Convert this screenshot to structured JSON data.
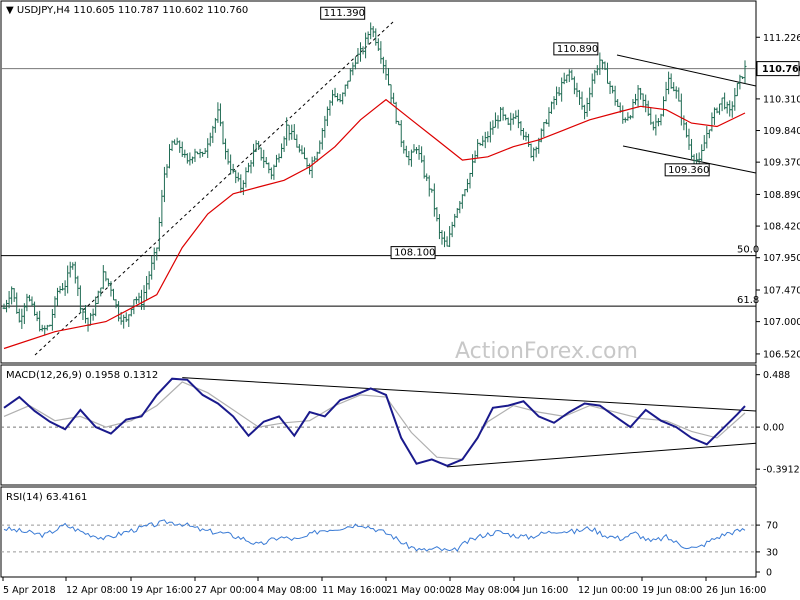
{
  "chart_data": [
    {
      "type": "candlestick",
      "title": "USDJPY,H4  110.605 110.787 110.602 110.760",
      "current_price_label": "110.760",
      "watermark": "ActionForex.com",
      "ylim": [
        106.4,
        111.75
      ],
      "y_ticks": [
        "111.226",
        "110.760",
        "110.310",
        "109.840",
        "109.370",
        "108.890",
        "108.420",
        "107.950",
        "107.470",
        "107.000",
        "106.520"
      ],
      "x_labels": [
        "5 Apr 2018",
        "12 Apr 08:00",
        "19 Apr 16:00",
        "27 Apr 00:00",
        "4 May 08:00",
        "11 May 16:00",
        "21 May 00:00",
        "28 May 08:00",
        "4 Jun 16:00",
        "12 Jun 00:00",
        "19 Jun 08:00",
        "26 Jun 16:00"
      ],
      "annotations": [
        {
          "text": "111.390",
          "value": 111.39
        },
        {
          "text": "110.890",
          "value": 110.89
        },
        {
          "text": "109.360",
          "value": 109.36
        },
        {
          "text": "108.100",
          "value": 108.1
        }
      ],
      "fib_levels": [
        {
          "label": "50.0",
          "value": 107.98
        },
        {
          "label": "61.8",
          "value": 107.23
        }
      ],
      "horizontal_line": 110.76,
      "close_path": [
        [
          0,
          107.2
        ],
        [
          3,
          107.5
        ],
        [
          6,
          107.0
        ],
        [
          9,
          107.4
        ],
        [
          12,
          107.1
        ],
        [
          15,
          106.85
        ],
        [
          18,
          106.95
        ],
        [
          21,
          107.45
        ],
        [
          24,
          107.55
        ],
        [
          27,
          107.9
        ],
        [
          30,
          107.25
        ],
        [
          33,
          106.95
        ],
        [
          36,
          107.25
        ],
        [
          39,
          107.7
        ],
        [
          42,
          107.5
        ],
        [
          45,
          107.1
        ],
        [
          48,
          107.0
        ],
        [
          51,
          107.35
        ],
        [
          54,
          107.3
        ],
        [
          57,
          107.7
        ],
        [
          60,
          108.1
        ],
        [
          63,
          109.2
        ],
        [
          66,
          109.65
        ],
        [
          69,
          109.6
        ],
        [
          72,
          109.35
        ],
        [
          75,
          109.55
        ],
        [
          78,
          109.45
        ],
        [
          81,
          109.8
        ],
        [
          84,
          110.1
        ],
        [
          87,
          109.5
        ],
        [
          90,
          109.2
        ],
        [
          93,
          109.0
        ],
        [
          96,
          109.3
        ],
        [
          99,
          109.6
        ],
        [
          102,
          109.4
        ],
        [
          105,
          109.2
        ],
        [
          108,
          109.5
        ],
        [
          111,
          109.9
        ],
        [
          114,
          109.7
        ],
        [
          117,
          109.45
        ],
        [
          120,
          109.3
        ],
        [
          123,
          109.55
        ],
        [
          126,
          110.0
        ],
        [
          129,
          110.4
        ],
        [
          132,
          110.25
        ],
        [
          135,
          110.6
        ],
        [
          138,
          110.9
        ],
        [
          141,
          111.05
        ],
        [
          144,
          111.39
        ],
        [
          147,
          111.1
        ],
        [
          150,
          110.7
        ],
        [
          153,
          110.2
        ],
        [
          156,
          109.7
        ],
        [
          159,
          109.4
        ],
        [
          162,
          109.6
        ],
        [
          165,
          109.2
        ],
        [
          168,
          108.9
        ],
        [
          171,
          108.3
        ],
        [
          174,
          108.1
        ],
        [
          177,
          108.6
        ],
        [
          180,
          108.9
        ],
        [
          183,
          109.2
        ],
        [
          186,
          109.6
        ],
        [
          189,
          109.7
        ],
        [
          192,
          109.9
        ],
        [
          195,
          110.1
        ],
        [
          198,
          109.9
        ],
        [
          201,
          110.1
        ],
        [
          204,
          109.8
        ],
        [
          207,
          109.5
        ],
        [
          210,
          109.7
        ],
        [
          213,
          110.0
        ],
        [
          216,
          110.3
        ],
        [
          219,
          110.5
        ],
        [
          222,
          110.7
        ],
        [
          225,
          110.4
        ],
        [
          228,
          110.1
        ],
        [
          231,
          110.6
        ],
        [
          234,
          110.89
        ],
        [
          237,
          110.6
        ],
        [
          240,
          110.3
        ],
        [
          243,
          110.0
        ],
        [
          246,
          110.1
        ],
        [
          249,
          110.4
        ],
        [
          252,
          110.2
        ],
        [
          255,
          109.9
        ],
        [
          258,
          110.1
        ],
        [
          261,
          110.6
        ],
        [
          264,
          110.4
        ],
        [
          267,
          109.9
        ],
        [
          270,
          109.5
        ],
        [
          273,
          109.36
        ],
        [
          276,
          109.8
        ],
        [
          279,
          110.1
        ],
        [
          282,
          110.3
        ],
        [
          285,
          110.1
        ],
        [
          288,
          110.5
        ],
        [
          291,
          110.76
        ]
      ],
      "ma_path": [
        [
          0,
          106.6
        ],
        [
          20,
          106.85
        ],
        [
          40,
          107.0
        ],
        [
          60,
          107.4
        ],
        [
          70,
          108.1
        ],
        [
          80,
          108.6
        ],
        [
          90,
          108.9
        ],
        [
          100,
          109.0
        ],
        [
          110,
          109.1
        ],
        [
          120,
          109.3
        ],
        [
          130,
          109.6
        ],
        [
          140,
          110.0
        ],
        [
          150,
          110.3
        ],
        [
          160,
          110.0
        ],
        [
          170,
          109.7
        ],
        [
          180,
          109.4
        ],
        [
          190,
          109.45
        ],
        [
          200,
          109.6
        ],
        [
          210,
          109.7
        ],
        [
          220,
          109.85
        ],
        [
          230,
          110.0
        ],
        [
          240,
          110.1
        ],
        [
          250,
          110.2
        ],
        [
          260,
          110.15
        ],
        [
          270,
          109.95
        ],
        [
          280,
          109.9
        ],
        [
          291,
          110.1
        ]
      ]
    },
    {
      "type": "line",
      "title": "MACD(12,26,9) 0.1958 0.1312",
      "ylim": [
        -0.52,
        0.55
      ],
      "y_ticks": [
        "0.488",
        "0.00",
        "-0.3912"
      ],
      "macd_path": [
        [
          0,
          0.18
        ],
        [
          6,
          0.28
        ],
        [
          12,
          0.15
        ],
        [
          18,
          0.05
        ],
        [
          24,
          -0.02
        ],
        [
          30,
          0.16
        ],
        [
          36,
          0.0
        ],
        [
          42,
          -0.06
        ],
        [
          48,
          0.07
        ],
        [
          54,
          0.1
        ],
        [
          60,
          0.3
        ],
        [
          66,
          0.45
        ],
        [
          72,
          0.44
        ],
        [
          78,
          0.3
        ],
        [
          84,
          0.22
        ],
        [
          90,
          0.1
        ],
        [
          96,
          -0.08
        ],
        [
          102,
          0.05
        ],
        [
          108,
          0.1
        ],
        [
          114,
          -0.08
        ],
        [
          120,
          0.14
        ],
        [
          126,
          0.1
        ],
        [
          132,
          0.25
        ],
        [
          138,
          0.3
        ],
        [
          144,
          0.36
        ],
        [
          150,
          0.3
        ],
        [
          156,
          -0.1
        ],
        [
          162,
          -0.34
        ],
        [
          168,
          -0.3
        ],
        [
          174,
          -0.36
        ],
        [
          180,
          -0.3
        ],
        [
          186,
          -0.1
        ],
        [
          192,
          0.18
        ],
        [
          198,
          0.2
        ],
        [
          204,
          0.24
        ],
        [
          210,
          0.1
        ],
        [
          216,
          0.04
        ],
        [
          222,
          0.14
        ],
        [
          228,
          0.22
        ],
        [
          234,
          0.2
        ],
        [
          240,
          0.1
        ],
        [
          246,
          0.0
        ],
        [
          252,
          0.16
        ],
        [
          258,
          0.06
        ],
        [
          264,
          0.0
        ],
        [
          270,
          -0.1
        ],
        [
          276,
          -0.16
        ],
        [
          282,
          -0.02
        ],
        [
          288,
          0.12
        ],
        [
          291,
          0.1958
        ]
      ],
      "signal_path": [
        [
          0,
          0.1
        ],
        [
          10,
          0.2
        ],
        [
          20,
          0.06
        ],
        [
          30,
          0.1
        ],
        [
          40,
          0.0
        ],
        [
          50,
          0.06
        ],
        [
          60,
          0.2
        ],
        [
          70,
          0.42
        ],
        [
          80,
          0.32
        ],
        [
          90,
          0.16
        ],
        [
          100,
          0.0
        ],
        [
          110,
          0.04
        ],
        [
          120,
          0.06
        ],
        [
          130,
          0.2
        ],
        [
          140,
          0.3
        ],
        [
          150,
          0.28
        ],
        [
          160,
          -0.05
        ],
        [
          170,
          -0.28
        ],
        [
          180,
          -0.3
        ],
        [
          190,
          0.05
        ],
        [
          200,
          0.2
        ],
        [
          210,
          0.14
        ],
        [
          220,
          0.1
        ],
        [
          230,
          0.2
        ],
        [
          240,
          0.14
        ],
        [
          250,
          0.08
        ],
        [
          260,
          0.06
        ],
        [
          270,
          -0.04
        ],
        [
          280,
          -0.1
        ],
        [
          291,
          0.1312
        ]
      ],
      "trendline_upper": [
        [
          70,
          0.46
        ],
        [
          291,
          0.15
        ]
      ],
      "trendline_lower": [
        [
          174,
          -0.37
        ],
        [
          291,
          -0.15
        ]
      ]
    },
    {
      "type": "line",
      "title": "RSI(14) 63.4161",
      "ylim": [
        0,
        100
      ],
      "y_ticks": [
        "70",
        "30",
        "0"
      ],
      "levels": [
        70,
        30
      ],
      "rsi_path": [
        [
          0,
          65
        ],
        [
          8,
          60
        ],
        [
          16,
          55
        ],
        [
          24,
          70
        ],
        [
          32,
          58
        ],
        [
          40,
          50
        ],
        [
          48,
          60
        ],
        [
          56,
          68
        ],
        [
          64,
          75
        ],
        [
          70,
          72
        ],
        [
          78,
          62
        ],
        [
          86,
          58
        ],
        [
          94,
          50
        ],
        [
          100,
          40
        ],
        [
          108,
          52
        ],
        [
          116,
          48
        ],
        [
          124,
          62
        ],
        [
          132,
          66
        ],
        [
          140,
          72
        ],
        [
          146,
          64
        ],
        [
          152,
          55
        ],
        [
          158,
          40
        ],
        [
          164,
          32
        ],
        [
          170,
          35
        ],
        [
          176,
          30
        ],
        [
          182,
          45
        ],
        [
          188,
          55
        ],
        [
          194,
          60
        ],
        [
          200,
          55
        ],
        [
          206,
          52
        ],
        [
          212,
          58
        ],
        [
          218,
          62
        ],
        [
          224,
          60
        ],
        [
          230,
          66
        ],
        [
          236,
          55
        ],
        [
          242,
          50
        ],
        [
          248,
          58
        ],
        [
          254,
          45
        ],
        [
          260,
          52
        ],
        [
          266,
          40
        ],
        [
          272,
          35
        ],
        [
          278,
          48
        ],
        [
          284,
          58
        ],
        [
          291,
          63.4
        ]
      ]
    }
  ]
}
